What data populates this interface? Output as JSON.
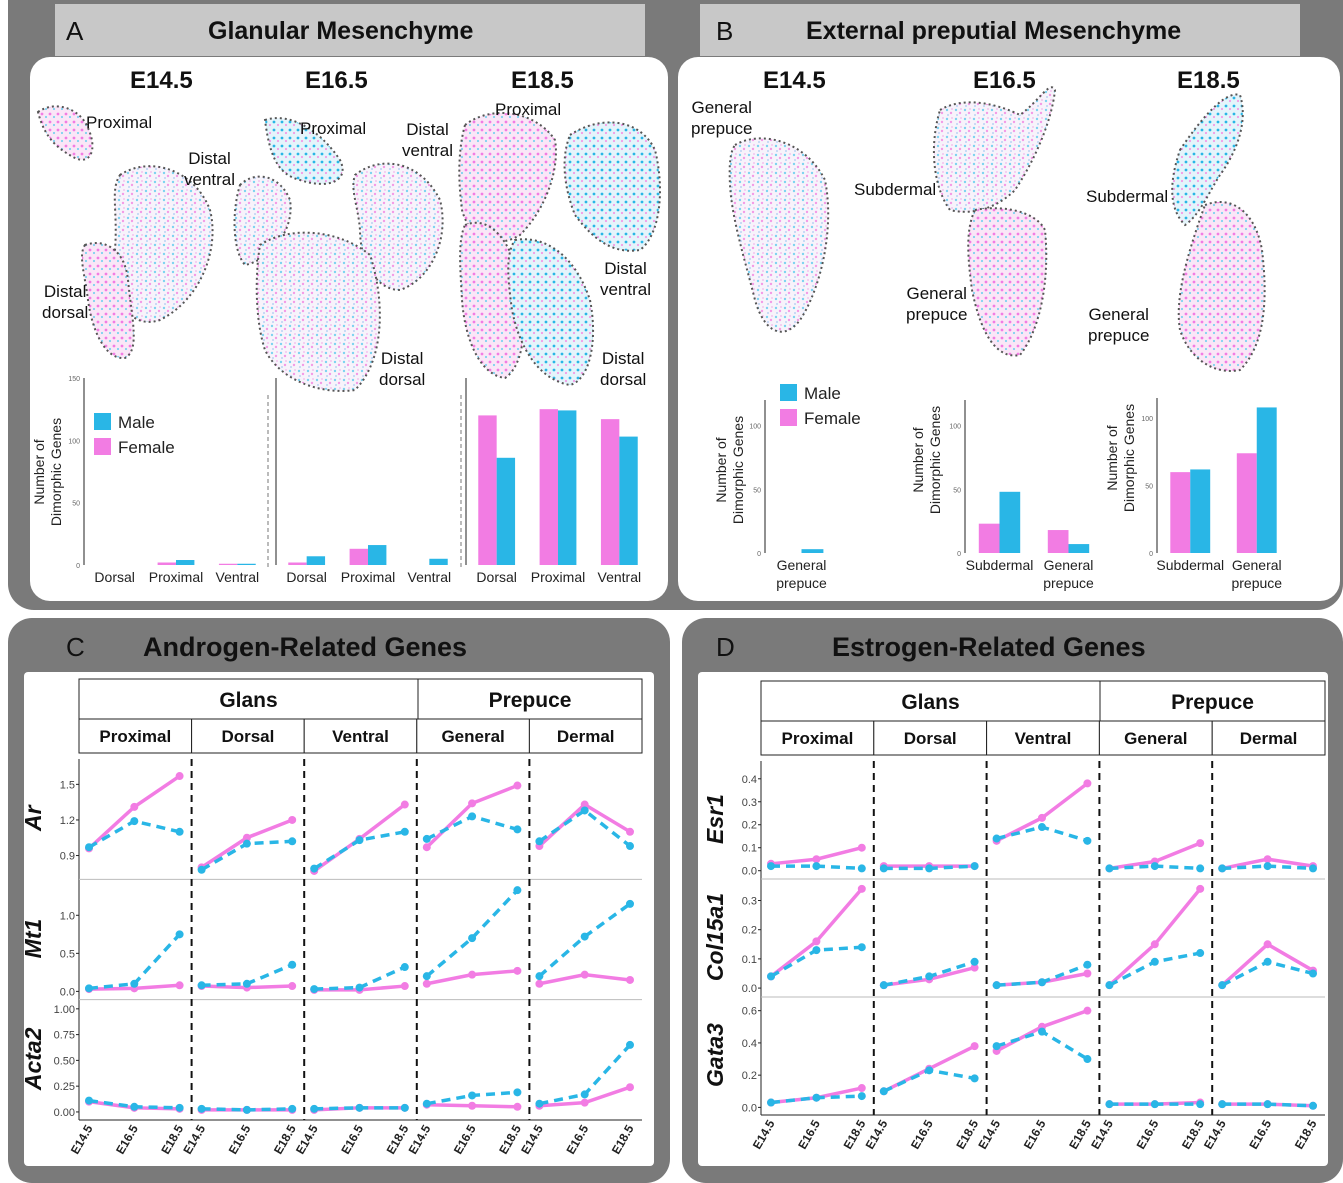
{
  "panels": {
    "A": {
      "letter": "A",
      "title": "Glanular Mesenchyme"
    },
    "B": {
      "letter": "B",
      "title": "External preputial Mesenchyme"
    },
    "C": {
      "letter": "C",
      "title": "Androgen-Related Genes"
    },
    "D": {
      "letter": "D",
      "title": "Estrogen-Related Genes"
    }
  },
  "stages": [
    "E14.5",
    "E16.5",
    "E18.5"
  ],
  "regions": {
    "proximal": "Proximal",
    "distal_ventral": "Distal\nventral",
    "distal_dorsal": "Distal\ndorsal",
    "general_prepuce": "General\nprepuce",
    "subdermal": "Subdermal"
  },
  "colors": {
    "male": "#29b6e6",
    "female": "#f27ce3",
    "panel_bg": "#7a7a7a",
    "title_bar": "#c8c8c8"
  },
  "legend": {
    "male": "Male",
    "female": "Female"
  },
  "ylabel_bar": "Number of\nDimorphic Genes",
  "facets": {
    "top_left": "Glans",
    "top_right": "Prepuce",
    "subs": [
      "Proximal",
      "Dorsal",
      "Ventral",
      "General",
      "Dermal"
    ]
  },
  "chart_data": [
    {
      "type": "bar",
      "id": "A-E14.5",
      "categories": [
        "Dorsal",
        "Proximal",
        "Ventral"
      ],
      "ylim": [
        0,
        150
      ],
      "yticks": [
        0,
        50,
        100,
        150
      ],
      "series": [
        {
          "name": "Female",
          "values": [
            0,
            2,
            1
          ]
        },
        {
          "name": "Male",
          "values": [
            0,
            4,
            1
          ]
        }
      ]
    },
    {
      "type": "bar",
      "id": "A-E16.5",
      "categories": [
        "Dorsal",
        "Proximal",
        "Ventral"
      ],
      "ylim": [
        0,
        150
      ],
      "series": [
        {
          "name": "Female",
          "values": [
            2,
            13,
            0
          ]
        },
        {
          "name": "Male",
          "values": [
            7,
            16,
            5
          ]
        }
      ]
    },
    {
      "type": "bar",
      "id": "A-E18.5",
      "categories": [
        "Dorsal",
        "Proximal",
        "Ventral"
      ],
      "ylim": [
        0,
        150
      ],
      "series": [
        {
          "name": "Female",
          "values": [
            120,
            125,
            117
          ]
        },
        {
          "name": "Male",
          "values": [
            86,
            124,
            103
          ]
        }
      ]
    },
    {
      "type": "bar",
      "id": "B-E14.5",
      "categories": [
        "General\nprepuce"
      ],
      "ylim": [
        0,
        120
      ],
      "yticks": [
        0,
        50,
        100
      ],
      "series": [
        {
          "name": "Female",
          "values": [
            0
          ]
        },
        {
          "name": "Male",
          "values": [
            3
          ]
        }
      ]
    },
    {
      "type": "bar",
      "id": "B-E16.5",
      "categories": [
        "Subdermal",
        "General\nprepuce"
      ],
      "ylim": [
        0,
        120
      ],
      "yticks": [
        0,
        50,
        100
      ],
      "series": [
        {
          "name": "Female",
          "values": [
            23,
            18
          ]
        },
        {
          "name": "Male",
          "values": [
            48,
            7
          ]
        }
      ]
    },
    {
      "type": "bar",
      "id": "B-E18.5",
      "categories": [
        "Subdermal",
        "General\nprepuce"
      ],
      "ylim": [
        0,
        115
      ],
      "yticks": [
        0,
        50,
        100
      ],
      "series": [
        {
          "name": "Female",
          "values": [
            60,
            74
          ]
        },
        {
          "name": "Male",
          "values": [
            62,
            108
          ]
        }
      ]
    },
    {
      "type": "line",
      "id": "C",
      "x": [
        "E14.5",
        "E16.5",
        "E18.5"
      ],
      "rows": [
        {
          "gene": "Ar",
          "ylim": [
            0.75,
            1.68
          ],
          "yticks": [
            0.9,
            1.2,
            1.5
          ],
          "ytick_labels": [
            "0.9",
            "1.2",
            "1.5"
          ],
          "female": [
            [
              0.96,
              1.31,
              1.57
            ],
            [
              0.8,
              1.05,
              1.2
            ],
            [
              0.77,
              1.04,
              1.33
            ],
            [
              0.97,
              1.34,
              1.49
            ],
            [
              0.98,
              1.33,
              1.1
            ]
          ],
          "male": [
            [
              0.97,
              1.19,
              1.1
            ],
            [
              0.78,
              1.0,
              1.02
            ],
            [
              0.79,
              1.03,
              1.1
            ],
            [
              1.04,
              1.23,
              1.12
            ],
            [
              1.02,
              1.28,
              0.98
            ]
          ]
        },
        {
          "gene": "Mt1",
          "ylim": [
            -0.03,
            1.42
          ],
          "yticks": [
            0.0,
            0.5,
            1.0
          ],
          "ytick_labels": [
            "0.0",
            "0.5",
            "1.0"
          ],
          "female": [
            [
              0.03,
              0.04,
              0.08
            ],
            [
              0.07,
              0.05,
              0.07
            ],
            [
              0.02,
              0.02,
              0.07
            ],
            [
              0.1,
              0.22,
              0.27
            ],
            [
              0.1,
              0.22,
              0.15
            ]
          ],
          "male": [
            [
              0.04,
              0.1,
              0.75
            ],
            [
              0.08,
              0.1,
              0.35
            ],
            [
              0.03,
              0.05,
              0.32
            ],
            [
              0.2,
              0.7,
              1.33
            ],
            [
              0.2,
              0.72,
              1.15
            ]
          ]
        },
        {
          "gene": "Acta2",
          "ylim": [
            -0.02,
            1.05
          ],
          "yticks": [
            0.0,
            0.25,
            0.5,
            0.75,
            1.0
          ],
          "ytick_labels": [
            "0.00",
            "0.25",
            "0.50",
            "0.75",
            "1.00"
          ],
          "female": [
            [
              0.1,
              0.04,
              0.03
            ],
            [
              0.02,
              0.02,
              0.02
            ],
            [
              0.02,
              0.04,
              0.04
            ],
            [
              0.07,
              0.06,
              0.05
            ],
            [
              0.06,
              0.09,
              0.24
            ]
          ],
          "male": [
            [
              0.11,
              0.05,
              0.04
            ],
            [
              0.03,
              0.02,
              0.03
            ],
            [
              0.03,
              0.04,
              0.04
            ],
            [
              0.08,
              0.16,
              0.19
            ],
            [
              0.08,
              0.17,
              0.65
            ]
          ]
        }
      ]
    },
    {
      "type": "line",
      "id": "D",
      "x": [
        "E14.5",
        "E16.5",
        "E18.5"
      ],
      "rows": [
        {
          "gene": "Esr1",
          "ylim": [
            -0.01,
            0.46
          ],
          "yticks": [
            0.0,
            0.1,
            0.2,
            0.3,
            0.4
          ],
          "ytick_labels": [
            "0.0",
            "0.1",
            "0.2",
            "0.3",
            "0.4"
          ],
          "female": [
            [
              0.03,
              0.05,
              0.1
            ],
            [
              0.02,
              0.02,
              0.02
            ],
            [
              0.13,
              0.23,
              0.38
            ],
            [
              0.01,
              0.04,
              0.12
            ],
            [
              0.01,
              0.05,
              0.02
            ]
          ],
          "male": [
            [
              0.02,
              0.02,
              0.01
            ],
            [
              0.01,
              0.01,
              0.02
            ],
            [
              0.14,
              0.19,
              0.13
            ],
            [
              0.01,
              0.02,
              0.01
            ],
            [
              0.01,
              0.02,
              0.01
            ]
          ]
        },
        {
          "gene": "Col15a1",
          "ylim": [
            -0.01,
            0.36
          ],
          "yticks": [
            0.0,
            0.1,
            0.2,
            0.3
          ],
          "ytick_labels": [
            "0.0",
            "0.1",
            "0.2",
            "0.3"
          ],
          "female": [
            [
              0.04,
              0.16,
              0.34
            ],
            [
              0.01,
              0.03,
              0.07
            ],
            [
              0.01,
              0.02,
              0.05
            ],
            [
              0.01,
              0.15,
              0.34
            ],
            [
              0.01,
              0.15,
              0.06
            ]
          ],
          "male": [
            [
              0.04,
              0.13,
              0.14
            ],
            [
              0.01,
              0.04,
              0.09
            ],
            [
              0.01,
              0.02,
              0.08
            ],
            [
              0.01,
              0.09,
              0.12
            ],
            [
              0.01,
              0.09,
              0.05
            ]
          ]
        },
        {
          "gene": "Gata3",
          "ylim": [
            -0.01,
            0.66
          ],
          "yticks": [
            0.0,
            0.2,
            0.4,
            0.6
          ],
          "ytick_labels": [
            "0.0",
            "0.2",
            "0.4",
            "0.6"
          ],
          "female": [
            [
              0.03,
              0.06,
              0.12
            ],
            [
              0.1,
              0.24,
              0.38
            ],
            [
              0.35,
              0.5,
              0.6
            ],
            [
              0.02,
              0.02,
              0.03
            ],
            [
              0.02,
              0.02,
              0.01
            ]
          ],
          "male": [
            [
              0.03,
              0.06,
              0.07
            ],
            [
              0.1,
              0.23,
              0.18
            ],
            [
              0.38,
              0.47,
              0.3
            ],
            [
              0.02,
              0.02,
              0.02
            ],
            [
              0.02,
              0.02,
              0.01
            ]
          ]
        }
      ]
    }
  ]
}
